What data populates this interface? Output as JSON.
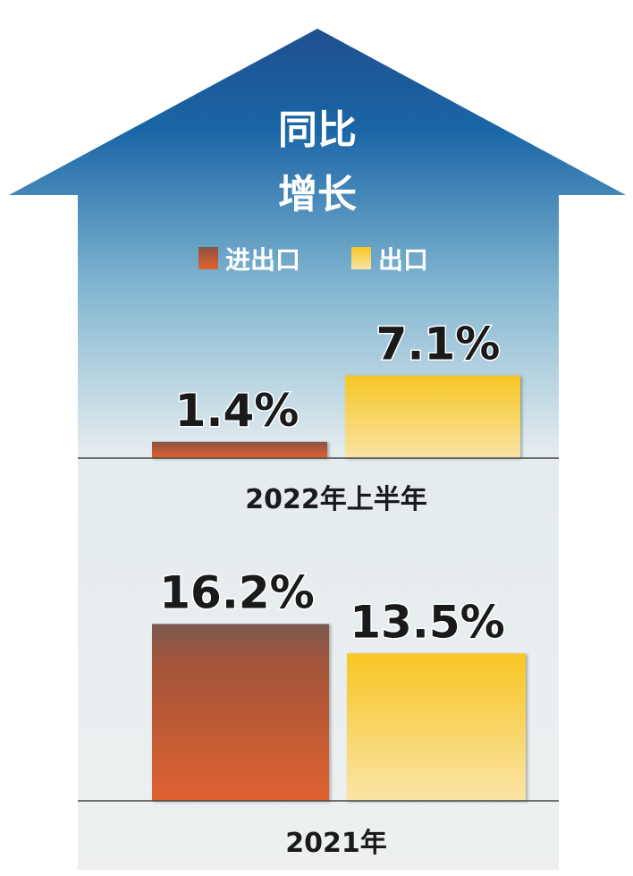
{
  "chart_data": {
    "type": "bar",
    "title": [
      "同比",
      "增长"
    ],
    "legend": [
      {
        "name": "进出口",
        "color": "#d9612e"
      },
      {
        "name": "出口",
        "color": "#f7c932"
      }
    ],
    "legend_placement": "top",
    "groups": [
      {
        "category": "2022年上半年",
        "values": [
          1.4,
          7.1
        ],
        "labels": [
          "1.4%",
          "7.1%"
        ]
      },
      {
        "category": "2021年",
        "values": [
          16.2,
          13.5
        ],
        "labels": [
          "16.2%",
          "13.5%"
        ]
      }
    ],
    "unit": "%",
    "grid": false,
    "colors": {
      "arrow_top": "#1f5797",
      "arrow_mid": "#7fb4d0",
      "arrow_bottom": "#eef0f0",
      "import_export_top": "#7d5a52",
      "import_export_bottom": "#e0622f",
      "export_top": "#f8c624",
      "export_bottom": "#f9e4a6"
    }
  }
}
